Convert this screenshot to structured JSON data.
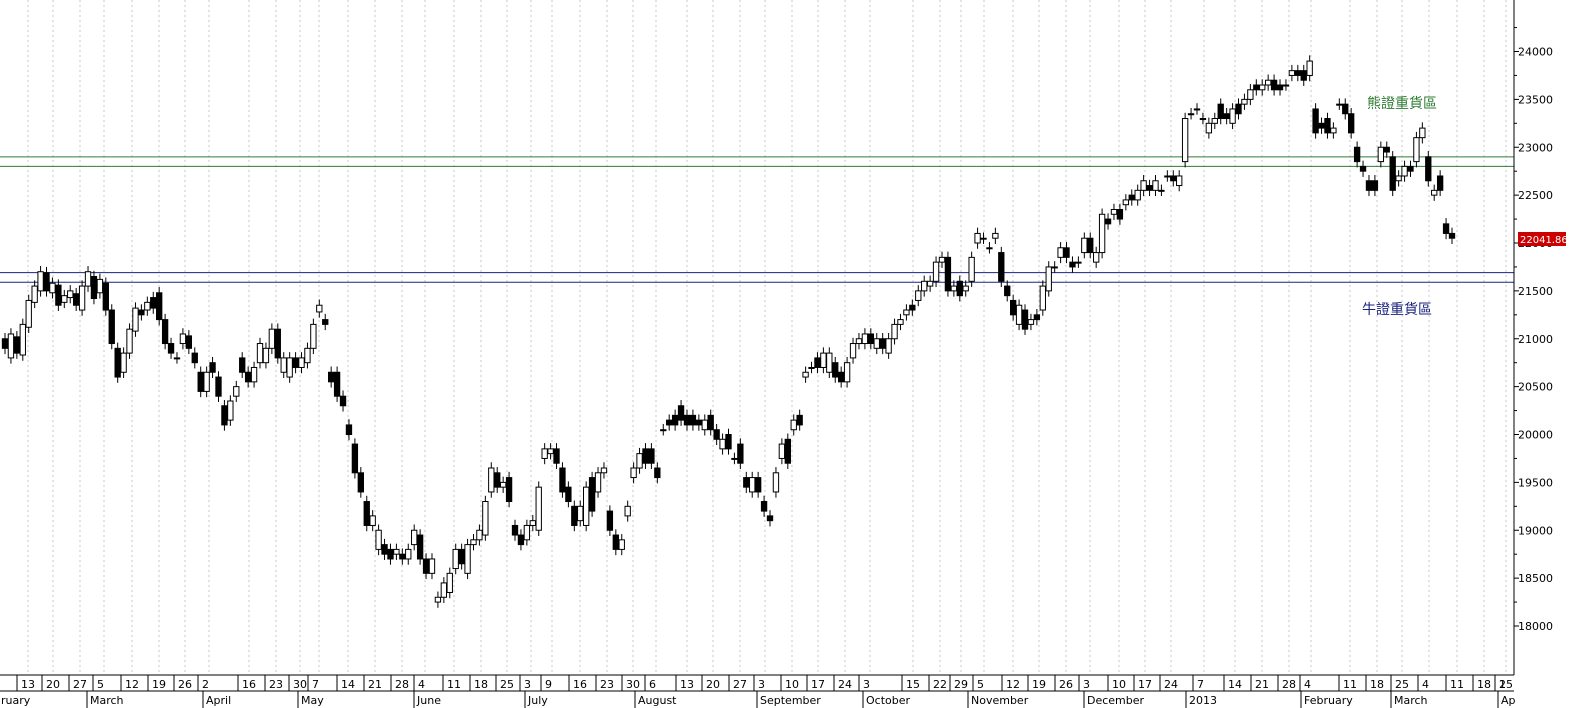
{
  "chart_data": {
    "type": "candlestick",
    "title": "",
    "xlabel": "",
    "ylabel": "",
    "ylim": [
      17500,
      24500
    ],
    "y_ticks": [
      "18000",
      "18500",
      "19000",
      "19500",
      "20000",
      "20500",
      "21000",
      "21500",
      "22000",
      "22500",
      "23000",
      "23500",
      "24000"
    ],
    "x_day_labels": [
      "13",
      "20",
      "27",
      "5",
      "12",
      "19",
      "26",
      "2",
      "16",
      "23",
      "30",
      "7",
      "14",
      "21",
      "28",
      "4",
      "11",
      "18",
      "25",
      "3",
      "9",
      "16",
      "23",
      "30",
      "6",
      "13",
      "20",
      "27",
      "3",
      "10",
      "17",
      "24",
      "3",
      "15",
      "22",
      "29",
      "5",
      "12",
      "19",
      "26",
      "3",
      "10",
      "17",
      "24",
      "7",
      "14",
      "21",
      "28",
      "4",
      "11",
      "18",
      "25",
      "4",
      "11",
      "18",
      "25",
      "1"
    ],
    "x_month_labels": [
      "ruary",
      "March",
      "April",
      "May",
      "June",
      "July",
      "August",
      "September",
      "October",
      "November",
      "December",
      "2013",
      "February",
      "March",
      "Ap"
    ],
    "last_price": "22041.86",
    "zones": [
      {
        "label": "熊證重貨區",
        "low": 22800,
        "high": 22900,
        "color": "#2e7d32"
      },
      {
        "label": "牛證重貨區",
        "low": 21590,
        "high": 21690,
        "color": "#1a237e"
      }
    ],
    "candles": [
      [
        21000,
        20900
      ],
      [
        20800,
        21050
      ],
      [
        21020,
        20850
      ],
      [
        20830,
        21150
      ],
      [
        21120,
        21400
      ],
      [
        21380,
        21550
      ],
      [
        21500,
        21700
      ],
      [
        21690,
        21500
      ],
      [
        21480,
        21580
      ],
      [
        21560,
        21350
      ],
      [
        21380,
        21450
      ],
      [
        21430,
        21500
      ],
      [
        21470,
        21350
      ],
      [
        21300,
        21550
      ],
      [
        21550,
        21700
      ],
      [
        21650,
        21420
      ],
      [
        21480,
        21620
      ],
      [
        21580,
        21300
      ],
      [
        21300,
        20950
      ],
      [
        20900,
        20600
      ],
      [
        20650,
        20850
      ],
      [
        20850,
        21100
      ],
      [
        21080,
        21320
      ],
      [
        21300,
        21250
      ],
      [
        21300,
        21380
      ],
      [
        21430,
        21320
      ],
      [
        21480,
        21200
      ],
      [
        21200,
        20950
      ],
      [
        20950,
        20850
      ],
      [
        20800,
        20800
      ],
      [
        20950,
        21050
      ],
      [
        21030,
        20900
      ],
      [
        20850,
        20750
      ],
      [
        20650,
        20450
      ],
      [
        20450,
        20650
      ],
      [
        20750,
        20650
      ],
      [
        20600,
        20400
      ],
      [
        20300,
        20100
      ],
      [
        20150,
        20350
      ],
      [
        20400,
        20500
      ],
      [
        20800,
        20650
      ],
      [
        20650,
        20550
      ],
      [
        20550,
        20700
      ],
      [
        20750,
        20950
      ],
      [
        20750,
        20900
      ],
      [
        20900,
        21100
      ],
      [
        21100,
        20800
      ],
      [
        20650,
        20800
      ],
      [
        20600,
        20800
      ],
      [
        20800,
        20700
      ],
      [
        20700,
        20800
      ],
      [
        20750,
        20900
      ],
      [
        20900,
        21150
      ],
      [
        21280,
        21350
      ],
      [
        21200,
        21150
      ],
      [
        20650,
        20550
      ],
      [
        20650,
        20400
      ],
      [
        20400,
        20300
      ],
      [
        20100,
        20000
      ],
      [
        19900,
        19600
      ],
      [
        19600,
        19400
      ],
      [
        19300,
        19050
      ],
      [
        19050,
        19150
      ],
      [
        18800,
        19000
      ],
      [
        18850,
        18750
      ],
      [
        18800,
        18700
      ],
      [
        18750,
        18800
      ],
      [
        18750,
        18700
      ],
      [
        18700,
        18800
      ],
      [
        18850,
        19000
      ],
      [
        18950,
        18700
      ],
      [
        18700,
        18550
      ],
      [
        18550,
        18700
      ],
      [
        18250,
        18300
      ],
      [
        18300,
        18450
      ],
      [
        18350,
        18550
      ],
      [
        18600,
        18800
      ],
      [
        18800,
        18650
      ],
      [
        18550,
        18850
      ],
      [
        18850,
        18900
      ],
      [
        18900,
        19000
      ],
      [
        18950,
        19300
      ],
      [
        19400,
        19650
      ],
      [
        19600,
        19450
      ],
      [
        19450,
        19500
      ],
      [
        19550,
        19300
      ],
      [
        19050,
        18950
      ],
      [
        18950,
        18850
      ],
      [
        18900,
        19050
      ],
      [
        19050,
        19100
      ],
      [
        19000,
        19450
      ],
      [
        19750,
        19850
      ],
      [
        19800,
        19850
      ],
      [
        19850,
        19700
      ],
      [
        19650,
        19400
      ],
      [
        19450,
        19300
      ],
      [
        19250,
        19050
      ],
      [
        19100,
        19250
      ],
      [
        19050,
        19450
      ],
      [
        19550,
        19200
      ],
      [
        19400,
        19600
      ],
      [
        19600,
        19650
      ],
      [
        19200,
        19000
      ],
      [
        18950,
        18800
      ],
      [
        18800,
        18900
      ],
      [
        19150,
        19250
      ],
      [
        19550,
        19650
      ],
      [
        19650,
        19800
      ],
      [
        19850,
        19700
      ],
      [
        19850,
        19700
      ],
      [
        19650,
        19550
      ],
      [
        20050,
        20050
      ],
      [
        20150,
        20100
      ],
      [
        20200,
        20100
      ],
      [
        20300,
        20150
      ],
      [
        20200,
        20100
      ],
      [
        20200,
        20100
      ],
      [
        20150,
        20100
      ],
      [
        20050,
        20150
      ],
      [
        20200,
        20050
      ],
      [
        20050,
        19950
      ],
      [
        19850,
        19950
      ],
      [
        20000,
        19850
      ],
      [
        19750,
        19750
      ],
      [
        19900,
        19700
      ],
      [
        19550,
        19450
      ],
      [
        19400,
        19550
      ],
      [
        19550,
        19400
      ],
      [
        19300,
        19200
      ],
      [
        19150,
        19100
      ],
      [
        19400,
        19600
      ],
      [
        19750,
        19900
      ],
      [
        19950,
        19700
      ],
      [
        20050,
        20150
      ],
      [
        20200,
        20100
      ],
      [
        20600,
        20650
      ],
      [
        20700,
        20700
      ],
      [
        20800,
        20700
      ],
      [
        20700,
        20850
      ],
      [
        20650,
        20850
      ],
      [
        20750,
        20600
      ],
      [
        20650,
        20550
      ],
      [
        20550,
        20750
      ],
      [
        20800,
        20950
      ],
      [
        20950,
        21000
      ],
      [
        20950,
        21050
      ],
      [
        21050,
        20950
      ],
      [
        20900,
        21000
      ],
      [
        21000,
        20900
      ],
      [
        20850,
        21000
      ],
      [
        21000,
        21150
      ],
      [
        21150,
        21200
      ],
      [
        21250,
        21300
      ],
      [
        21350,
        21300
      ],
      [
        21400,
        21500
      ],
      [
        21500,
        21600
      ],
      [
        21550,
        21600
      ],
      [
        21600,
        21800
      ],
      [
        21800,
        21850
      ],
      [
        21850,
        21500
      ],
      [
        21500,
        21550
      ],
      [
        21600,
        21450
      ],
      [
        21500,
        21550
      ],
      [
        21600,
        21850
      ],
      [
        22000,
        22100
      ],
      [
        22050,
        22050
      ],
      [
        21950,
        21950
      ],
      [
        22050,
        22100
      ],
      [
        21900,
        21600
      ],
      [
        21550,
        21450
      ],
      [
        21400,
        21250
      ],
      [
        21150,
        21350
      ],
      [
        21300,
        21100
      ],
      [
        21150,
        21200
      ],
      [
        21250,
        21200
      ],
      [
        21300,
        21550
      ],
      [
        21500,
        21750
      ],
      [
        21750,
        21750
      ],
      [
        21850,
        21950
      ],
      [
        21950,
        21850
      ],
      [
        21800,
        21750
      ],
      [
        21800,
        21800
      ],
      [
        21900,
        22050
      ],
      [
        22050,
        21900
      ],
      [
        21800,
        21900
      ],
      [
        21900,
        22300
      ],
      [
        22250,
        22200
      ],
      [
        22300,
        22350
      ],
      [
        22350,
        22250
      ],
      [
        22400,
        22450
      ],
      [
        22500,
        22450
      ],
      [
        22450,
        22550
      ],
      [
        22550,
        22650
      ],
      [
        22600,
        22550
      ],
      [
        22550,
        22650
      ],
      [
        22550,
        22550
      ],
      [
        22700,
        22700
      ],
      [
        22700,
        22650
      ],
      [
        22600,
        22700
      ],
      [
        22850,
        23300
      ],
      [
        23350,
        23350
      ],
      [
        23400,
        23400
      ],
      [
        23300,
        23300
      ],
      [
        23150,
        23250
      ],
      [
        23250,
        23300
      ],
      [
        23450,
        23300
      ],
      [
        23350,
        23300
      ],
      [
        23250,
        23400
      ],
      [
        23450,
        23350
      ],
      [
        23450,
        23500
      ],
      [
        23500,
        23600
      ],
      [
        23650,
        23600
      ],
      [
        23600,
        23650
      ],
      [
        23650,
        23700
      ],
      [
        23700,
        23600
      ],
      [
        23650,
        23600
      ],
      [
        23650,
        23650
      ],
      [
        23750,
        23800
      ],
      [
        23800,
        23750
      ],
      [
        23800,
        23700
      ],
      [
        23750,
        23900
      ],
      [
        23400,
        23150
      ],
      [
        23250,
        23200
      ],
      [
        23300,
        23150
      ],
      [
        23150,
        23200
      ],
      [
        23450,
        23450
      ],
      [
        23450,
        23350
      ],
      [
        23350,
        23150
      ],
      [
        23000,
        22850
      ],
      [
        22800,
        22750
      ],
      [
        22650,
        22550
      ],
      [
        22650,
        22550
      ],
      [
        22850,
        23000
      ],
      [
        23000,
        22950
      ],
      [
        22900,
        22550
      ],
      [
        22650,
        22700
      ],
      [
        22700,
        22800
      ],
      [
        22800,
        22750
      ],
      [
        22850,
        23100
      ],
      [
        23100,
        23200
      ],
      [
        22900,
        22650
      ],
      [
        22500,
        22550
      ],
      [
        22700,
        22550
      ],
      [
        22200,
        22100
      ],
      [
        22100,
        22050
      ]
    ]
  },
  "colors": {
    "up": "#ffffff",
    "down": "#000000",
    "bear_zone": "#2e7d32",
    "bull_zone": "#1a237e",
    "price_tag_bg": "#cc0000"
  }
}
